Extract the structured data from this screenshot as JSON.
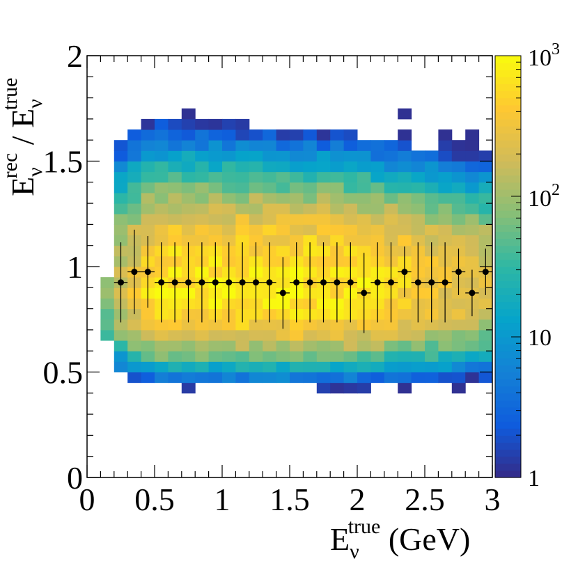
{
  "chart_data": {
    "type": "heatmap",
    "title": "",
    "xlabel": {
      "base": "E",
      "sub": "ν",
      "sup": "true",
      "suffix": " (GeV)"
    },
    "ylabel": {
      "num_base": "E",
      "num_sub": "ν",
      "num_sup": "rec",
      "sep": " / ",
      "den_base": "E",
      "den_sub": "ν",
      "den_sup": "true"
    },
    "xlim": [
      0,
      3
    ],
    "ylim": [
      0,
      2
    ],
    "x_ticks": [
      "0",
      "0.5",
      "1",
      "1.5",
      "2",
      "2.5",
      "3"
    ],
    "y_ticks": [
      "0",
      "0.5",
      "1",
      "1.5",
      "2"
    ],
    "bin_width_x": 0.1,
    "bin_width_y": 0.05,
    "z_scale": "log",
    "z_range": [
      1,
      1000
    ],
    "colorbar_labels": {
      "one": "1",
      "ten": "10",
      "hundred_base": "10",
      "hundred_exp": "2",
      "thousand_base": "10",
      "thousand_exp": "3"
    },
    "colormap": [
      "#352a87",
      "#0f5cdd",
      "#1481d6",
      "#06a4ca",
      "#2eb7a4",
      "#87bf77",
      "#d1bb59",
      "#fec832",
      "#f9fb0e"
    ],
    "profile": {
      "x": [
        0.25,
        0.35,
        0.45,
        0.55,
        0.65,
        0.75,
        0.85,
        0.95,
        1.05,
        1.15,
        1.25,
        1.35,
        1.45,
        1.55,
        1.65,
        1.75,
        1.85,
        1.95,
        2.05,
        2.15,
        2.25,
        2.35,
        2.45,
        2.55,
        2.65,
        2.75,
        2.85,
        2.95
      ],
      "y": [
        0.925,
        0.975,
        0.975,
        0.925,
        0.925,
        0.925,
        0.925,
        0.925,
        0.925,
        0.925,
        0.925,
        0.925,
        0.875,
        0.925,
        0.925,
        0.925,
        0.925,
        0.925,
        0.875,
        0.925,
        0.925,
        0.975,
        0.925,
        0.925,
        0.925,
        0.975,
        0.875,
        0.975
      ],
      "yerr": [
        0.19,
        0.2,
        0.17,
        0.19,
        0.19,
        0.19,
        0.19,
        0.19,
        0.19,
        0.19,
        0.19,
        0.19,
        0.17,
        0.19,
        0.19,
        0.19,
        0.19,
        0.19,
        0.19,
        0.19,
        0.19,
        0.12,
        0.19,
        0.19,
        0.19,
        0.11,
        0.11,
        0.11
      ],
      "xerr": 0.05
    }
  }
}
